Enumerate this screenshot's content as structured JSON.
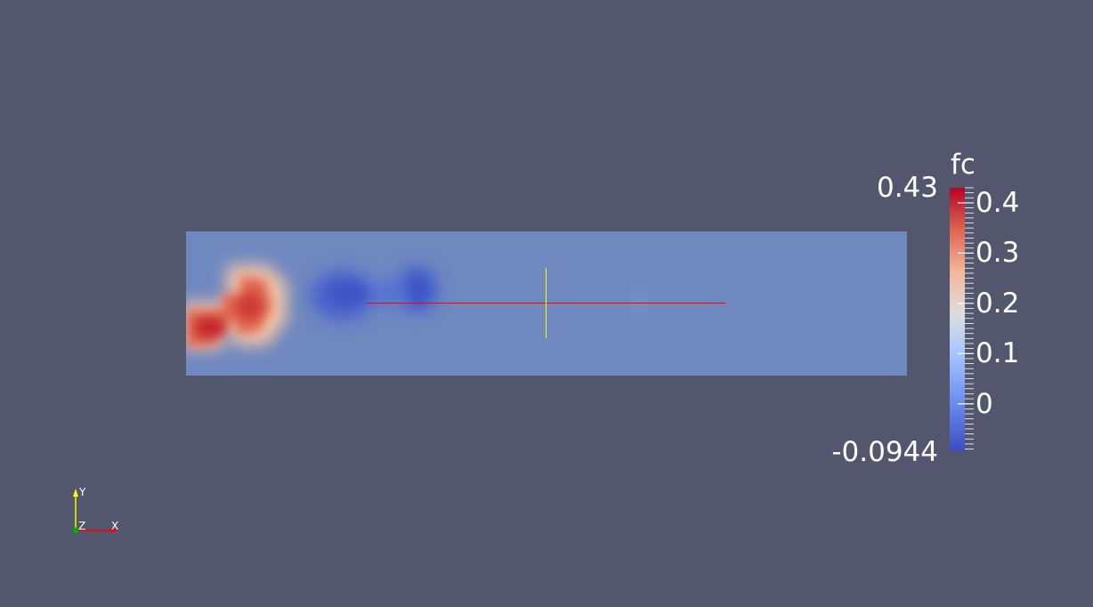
{
  "colorbar": {
    "title": "fc",
    "range_max_label": "0.43",
    "range_min_label": "-0.0944",
    "range": [
      -0.0944,
      0.43
    ],
    "tick_labels": [
      "0.4",
      "0.3",
      "0.2",
      "0.1",
      "0"
    ],
    "colors": {
      "high": "#b40426",
      "mid": "#dddddd",
      "low": "#3b4cc0"
    }
  },
  "axes_widget": {
    "y_label": "Y",
    "z_label": "Z",
    "x_label": "X",
    "colors": {
      "y": "#ffff00",
      "x": "#ff0000",
      "z": "#00aa00"
    }
  },
  "scene": {
    "background": "#52576e",
    "domain_color": "#6f88c0",
    "probe_line_color": "#ff0000",
    "cursor_line_color": "#ffff00"
  }
}
